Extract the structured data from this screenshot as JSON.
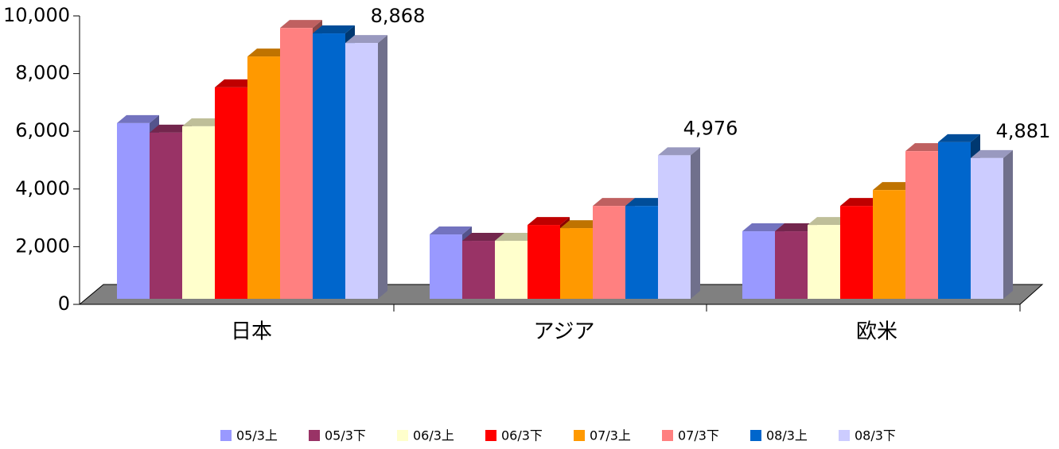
{
  "chart_data": {
    "type": "bar",
    "categories": [
      "日本",
      "アジア",
      "欧米"
    ],
    "series": [
      {
        "name": "05/3上",
        "color": "#9999ff",
        "values": [
          6090,
          2230,
          2340
        ]
      },
      {
        "name": "05/3下",
        "color": "#993366",
        "values": [
          5760,
          2010,
          2340
        ]
      },
      {
        "name": "06/3上",
        "color": "#ffffcc",
        "values": [
          5980,
          2010,
          2560
        ]
      },
      {
        "name": "06/3下",
        "color": "#ff0000",
        "values": [
          7330,
          2560,
          3220
        ]
      },
      {
        "name": "07/3上",
        "color": "#ff9900",
        "values": [
          8400,
          2450,
          3770
        ]
      },
      {
        "name": "07/3下",
        "color": "#ff8080",
        "values": [
          9390,
          3220,
          5120
        ]
      },
      {
        "name": "08/3上",
        "color": "#0066cc",
        "values": [
          9200,
          3220,
          5430
        ]
      },
      {
        "name": "08/3下",
        "color": "#ccccff",
        "values": [
          8868,
          4976,
          4881
        ],
        "value_labels": [
          "8,868",
          "4,976",
          "4,881"
        ]
      }
    ],
    "ylim": [
      0,
      10000
    ],
    "yticks": [
      0,
      {
        "value": 2000,
        "label": "2,000"
      },
      {
        "value": 4000,
        "label": "4,000"
      },
      {
        "value": 6000,
        "label": "6,000"
      },
      {
        "value": 8000,
        "label": "8,000"
      },
      {
        "value": 10000,
        "label": "10,000"
      }
    ]
  }
}
